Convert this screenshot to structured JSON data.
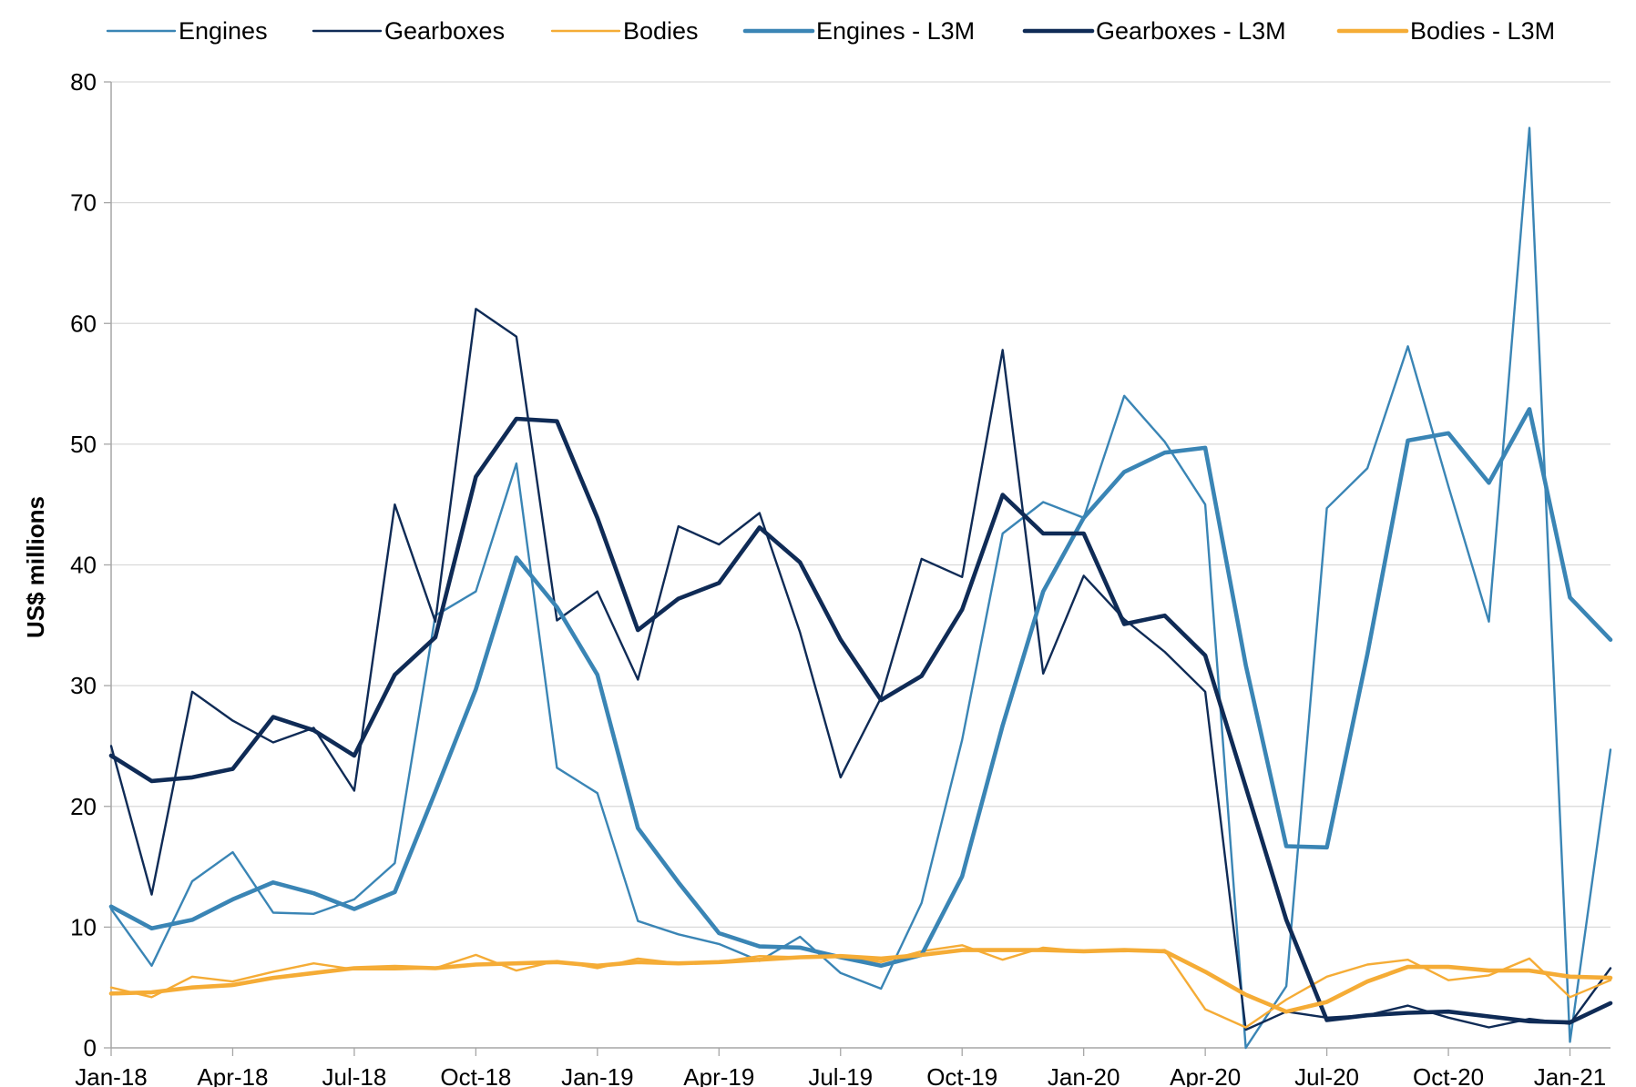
{
  "chart_data": {
    "type": "line",
    "title": "",
    "xlabel": "",
    "ylabel": "US$ millions",
    "ylim": [
      0,
      80
    ],
    "yticks": [
      0,
      10,
      20,
      30,
      40,
      50,
      60,
      70,
      80
    ],
    "grid": "horizontal",
    "legend": "top",
    "x": [
      "Jan-18",
      "Feb-18",
      "Mar-18",
      "Apr-18",
      "May-18",
      "Jun-18",
      "Jul-18",
      "Aug-18",
      "Sep-18",
      "Oct-18",
      "Nov-18",
      "Dec-18",
      "Jan-19",
      "Feb-19",
      "Mar-19",
      "Apr-19",
      "May-19",
      "Jun-19",
      "Jul-19",
      "Aug-19",
      "Sep-19",
      "Oct-19",
      "Nov-19",
      "Dec-19",
      "Jan-20",
      "Feb-20",
      "Mar-20",
      "Apr-20",
      "May-20",
      "Jun-20",
      "Jul-20",
      "Aug-20",
      "Sep-20",
      "Oct-20",
      "Nov-20",
      "Dec-20",
      "Jan-21",
      "Feb-21"
    ],
    "xticks": [
      "Jan-18",
      "Apr-18",
      "Jul-18",
      "Oct-18",
      "Jan-19",
      "Apr-19",
      "Jul-19",
      "Oct-19",
      "Jan-20",
      "Apr-20",
      "Jul-20",
      "Oct-20",
      "Jan-21"
    ],
    "series": [
      {
        "name": "Engines",
        "color": "#3a85b5",
        "weight": "thin",
        "values": [
          11.5,
          6.8,
          13.8,
          16.2,
          11.2,
          11.1,
          12.3,
          15.3,
          35.8,
          37.8,
          48.4,
          23.2,
          21.1,
          10.5,
          9.4,
          8.6,
          7.2,
          9.2,
          6.2,
          4.9,
          12.0,
          25.5,
          42.6,
          45.2,
          43.9,
          54.0,
          50.2,
          45.0,
          0.0,
          5.1,
          44.7,
          48.0,
          58.1,
          46.5,
          35.3,
          76.2,
          0.5,
          24.7
        ]
      },
      {
        "name": "Gearboxes",
        "color": "#0f2b56",
        "weight": "thin",
        "values": [
          25.0,
          12.7,
          29.5,
          27.1,
          25.3,
          26.5,
          21.3,
          45.0,
          35.3,
          61.2,
          58.9,
          35.4,
          37.8,
          30.5,
          43.2,
          41.7,
          44.3,
          34.4,
          22.4,
          29.0,
          40.5,
          39.0,
          57.8,
          31.0,
          39.1,
          35.5,
          32.8,
          29.5,
          1.5,
          3.0,
          2.5,
          2.7,
          3.5,
          2.5,
          1.7,
          2.4,
          2.0,
          6.6
        ]
      },
      {
        "name": "Bodies",
        "color": "#f5ac36",
        "weight": "thin",
        "values": [
          5.0,
          4.2,
          5.9,
          5.5,
          6.3,
          7.0,
          6.5,
          6.5,
          6.6,
          7.7,
          6.4,
          7.2,
          6.6,
          7.4,
          7.0,
          7.1,
          7.6,
          7.5,
          7.6,
          7.1,
          8.0,
          8.5,
          7.3,
          8.3,
          8.0,
          8.0,
          8.1,
          3.2,
          1.7,
          4.0,
          5.9,
          6.9,
          7.3,
          5.6,
          6.0,
          7.4,
          4.2,
          5.6
        ]
      },
      {
        "name": "Engines - L3M",
        "color": "#3a85b5",
        "weight": "thick",
        "values": [
          11.7,
          9.9,
          10.6,
          12.3,
          13.7,
          12.8,
          11.5,
          12.9,
          21.2,
          29.7,
          40.6,
          36.5,
          30.9,
          18.2,
          13.7,
          9.5,
          8.4,
          8.3,
          7.5,
          6.8,
          7.7,
          14.2,
          26.7,
          37.8,
          43.9,
          47.7,
          49.3,
          49.7,
          31.7,
          16.7,
          16.6,
          32.6,
          50.3,
          50.9,
          46.8,
          52.9,
          37.3,
          33.8
        ]
      },
      {
        "name": "Gearboxes - L3M",
        "color": "#0f2b56",
        "weight": "thick",
        "values": [
          24.2,
          22.1,
          22.4,
          23.1,
          27.4,
          26.3,
          24.2,
          30.9,
          34.0,
          47.3,
          52.1,
          51.9,
          43.9,
          34.6,
          37.2,
          38.5,
          43.1,
          40.2,
          33.8,
          28.8,
          30.8,
          36.3,
          45.8,
          42.6,
          42.6,
          35.1,
          35.8,
          32.5,
          21.6,
          10.6,
          2.3,
          2.7,
          2.9,
          3.0,
          2.6,
          2.2,
          2.1,
          3.7
        ]
      },
      {
        "name": "Bodies - L3M",
        "color": "#f5ac36",
        "weight": "thick",
        "values": [
          4.5,
          4.6,
          5.0,
          5.2,
          5.8,
          6.2,
          6.6,
          6.7,
          6.6,
          6.9,
          7.0,
          7.1,
          6.8,
          7.1,
          7.0,
          7.1,
          7.3,
          7.5,
          7.6,
          7.4,
          7.7,
          8.1,
          8.1,
          8.1,
          8.0,
          8.1,
          8.0,
          6.3,
          4.4,
          3.0,
          3.8,
          5.5,
          6.7,
          6.7,
          6.4,
          6.4,
          5.9,
          5.8
        ]
      }
    ]
  }
}
